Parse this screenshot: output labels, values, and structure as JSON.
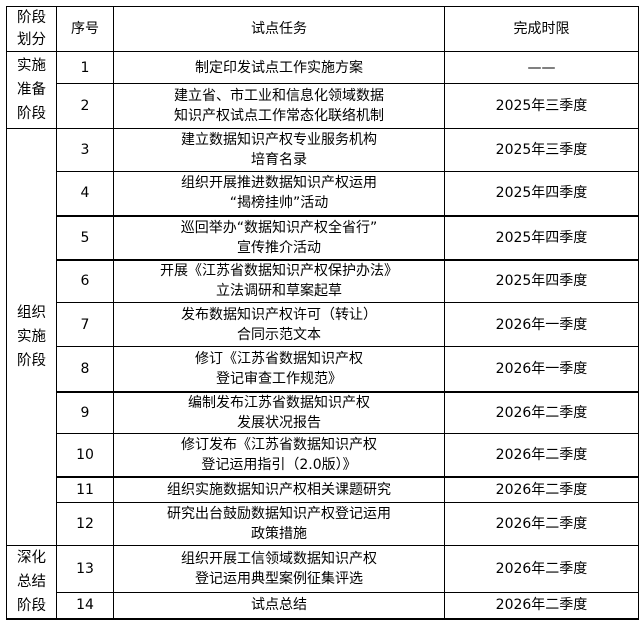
{
  "headers": {
    "stage": "阶段划分",
    "number": "序号",
    "task": "试点任务",
    "deadline": "完成时限"
  },
  "stages": [
    {
      "label": "实施准备阶段",
      "lines": [
        "实施",
        "准备",
        "阶段"
      ]
    },
    {
      "label": "组织实施阶段",
      "lines": [
        "组织",
        "实施",
        "阶段"
      ]
    },
    {
      "label": "深化总结阶段",
      "lines": [
        "深化",
        "总结",
        "阶段"
      ]
    }
  ],
  "rows": [
    {
      "no": "1",
      "task": [
        "制定印发试点工作实施方案"
      ],
      "deadline": "——"
    },
    {
      "no": "2",
      "task": [
        "建立省、市工业和信息化领域数据",
        "知识产权试点工作常态化联络机制"
      ],
      "deadline": "2025年三季度"
    },
    {
      "no": "3",
      "task": [
        "建立数据知识产权专业服务机构",
        "培育名录"
      ],
      "deadline": "2025年三季度"
    },
    {
      "no": "4",
      "task": [
        "组织开展推进数据知识产权运用",
        "“揭榜挂帅”活动"
      ],
      "deadline": "2025年四季度"
    },
    {
      "no": "5",
      "task": [
        "巡回举办“数据知识产权全省行”",
        "宣传推介活动"
      ],
      "deadline": "2025年四季度"
    },
    {
      "no": "6",
      "task": [
        "开展《江苏省数据知识产权保护办法》",
        "立法调研和草案起草"
      ],
      "deadline": "2025年四季度"
    },
    {
      "no": "7",
      "task": [
        "发布数据知识产权许可（转让）",
        "合同示范文本"
      ],
      "deadline": "2026年一季度"
    },
    {
      "no": "8",
      "task": [
        "修订《江苏省数据知识产权",
        "登记审查工作规范》"
      ],
      "deadline": "2026年一季度"
    },
    {
      "no": "9",
      "task": [
        "编制发布江苏省数据知识产权",
        "发展状况报告"
      ],
      "deadline": "2026年二季度"
    },
    {
      "no": "10",
      "task": [
        "修订发布《江苏省数据知识产权",
        "登记运用指引（2.0版）》"
      ],
      "deadline": "2026年二季度"
    },
    {
      "no": "11",
      "task": [
        "组织实施数据知识产权相关课题研究"
      ],
      "deadline": "2026年二季度"
    },
    {
      "no": "12",
      "task": [
        "研究出台鼓励数据知识产权登记运用",
        "政策措施"
      ],
      "deadline": "2026年二季度"
    },
    {
      "no": "13",
      "task": [
        "组织开展工信领域数据知识产权",
        "登记运用典型案例征集评选"
      ],
      "deadline": "2026年二季度"
    },
    {
      "no": "14",
      "task": [
        "试点总结"
      ],
      "deadline": "2026年二季度"
    }
  ]
}
